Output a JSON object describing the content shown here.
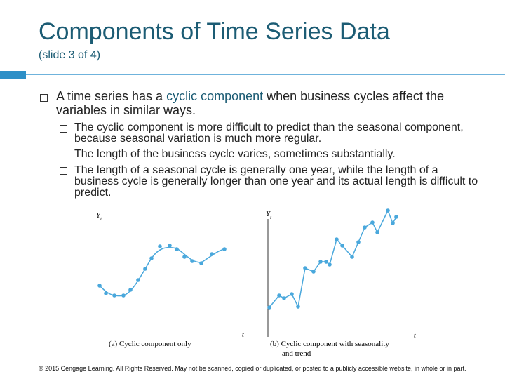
{
  "header": {
    "title": "Components of Time Series Data",
    "subtitle": "(slide 3 of 4)"
  },
  "main_bullet": {
    "before": "A time series has a ",
    "highlight": "cyclic component",
    "after": " when business cycles affect the variables in similar ways."
  },
  "sub_bullets": [
    "The cyclic component is more difficult to predict than the seasonal component, because seasonal variation is much more regular.",
    "The length of the business cycle varies, sometimes substantially.",
    "The length of a seasonal cycle is generally one year, while the length of a business cycle is generally longer than one year and its actual length is difficult to predict."
  ],
  "figures": [
    {
      "y_label": "Y",
      "y_label_sub": "t",
      "x_label": "t",
      "caption": [
        "(a) Cyclic component only"
      ]
    },
    {
      "y_label": "Y",
      "y_label_sub": "t",
      "x_label": "t",
      "caption": [
        "(b) Cyclic component with seasonality",
        "and trend"
      ]
    }
  ],
  "footer": "© 2015 Cengage Learning. All Rights Reserved. May not be scanned, copied or duplicated, or posted to a publicly accessible website, in whole or in part."
}
